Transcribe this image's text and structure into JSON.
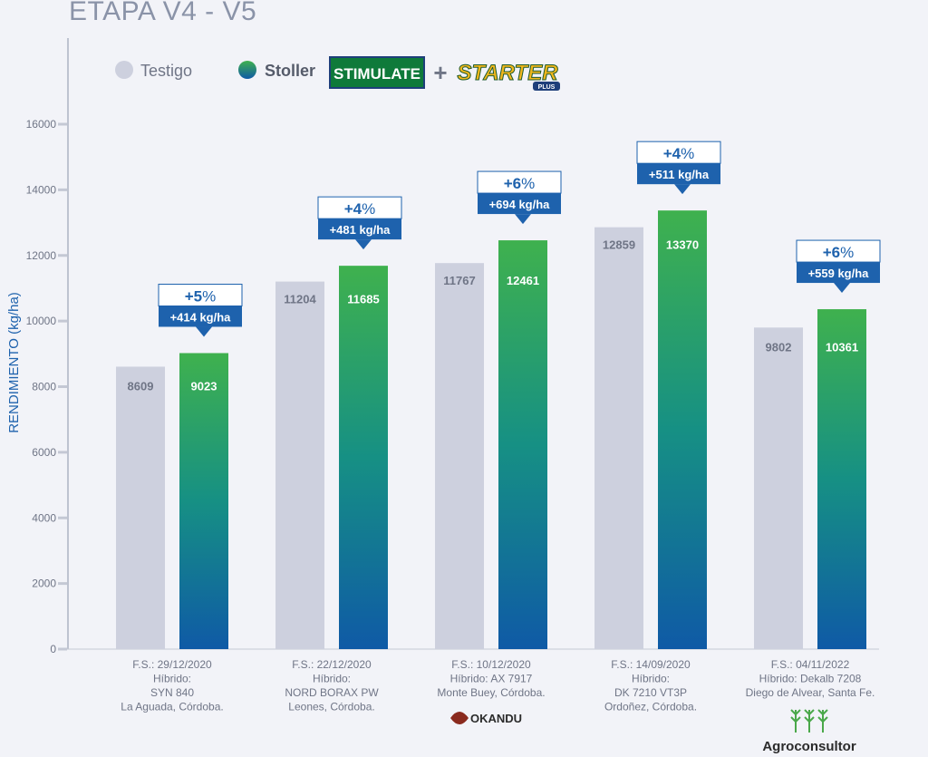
{
  "title": "ETAPA V4 - V5",
  "colors": {
    "testigo": "#cdd0de",
    "green_top": "#3fb14e",
    "blue_bottom": "#0f5aa6",
    "axis": "#8a93a8",
    "label_text": "#6f7586",
    "badge_blue": "#1e62ad"
  },
  "legend": {
    "testigo": "Testigo",
    "stoller": "Stoller",
    "brand1": "STIMULATE",
    "plus": "+",
    "brand2": "STARTER",
    "brand2_sub": "PLUS"
  },
  "logos": {
    "okandu": "OKANDU",
    "agroconsultor": "Agroconsultor"
  },
  "chart_data": {
    "type": "bar",
    "ylabel": "RENDIMIENTO (kg/ha)",
    "ylim": [
      0,
      16000
    ],
    "yticks": [
      0,
      2000,
      4000,
      6000,
      8000,
      10000,
      12000,
      14000,
      16000
    ],
    "categories": [
      [
        "F.S.: 29/12/2020",
        "Híbrido:",
        "SYN 840",
        "La Aguada, Córdoba."
      ],
      [
        "F.S.: 22/12/2020",
        "Híbrido:",
        "NORD BORAX PW",
        "Leones, Córdoba."
      ],
      [
        "F.S.: 10/12/2020",
        "Híbrido: AX 7917",
        "Monte Buey, Córdoba."
      ],
      [
        "F.S.: 14/09/2020",
        "Híbrido:",
        "DK 7210 VT3P",
        "Ordoñez, Córdoba."
      ],
      [
        "F.S.: 04/11/2022",
        "Híbrido: Dekalb 7208",
        "Diego de Alvear, Santa Fe."
      ]
    ],
    "series": [
      {
        "name": "Testigo",
        "values": [
          8609,
          11204,
          11767,
          12859,
          9802
        ]
      },
      {
        "name": "Stoller",
        "values": [
          9023,
          11685,
          12461,
          13370,
          10361
        ]
      }
    ],
    "annotations": [
      {
        "pct": "+5",
        "pct_sign": "%",
        "kg": "+414 kg/ha"
      },
      {
        "pct": "+4",
        "pct_sign": "%",
        "kg": "+481 kg/ha"
      },
      {
        "pct": "+6",
        "pct_sign": "%",
        "kg": "+694 kg/ha"
      },
      {
        "pct": "+4",
        "pct_sign": "%",
        "kg": "+511 kg/ha"
      },
      {
        "pct": "+6",
        "pct_sign": "%",
        "kg": "+559 kg/ha"
      }
    ]
  }
}
